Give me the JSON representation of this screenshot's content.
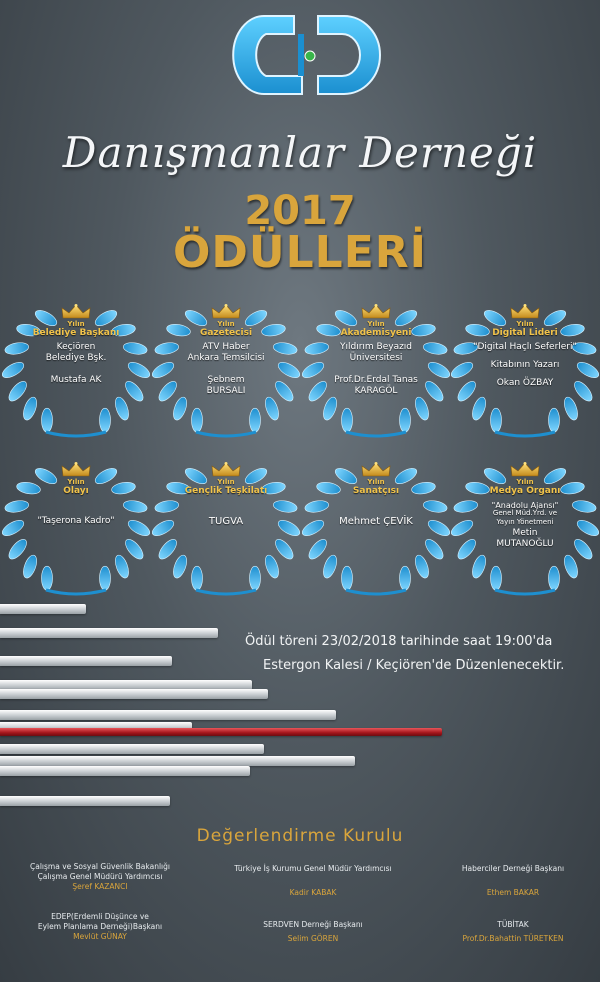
{
  "header": {
    "org_name": "Danışmanlar Derneği",
    "year": "2017",
    "title": "ÖDÜLLERİ"
  },
  "colors": {
    "gold": "#d9a53c",
    "wreath_blue": "#2aa7e0",
    "background": "#4f585f",
    "red_bar": "#a3151b"
  },
  "awards": [
    {
      "yilin": "Yılın",
      "category": "Belediye Başkanı",
      "lines": [
        "Keçiören",
        "Belediye Bşk.",
        "",
        "Mustafa AK"
      ]
    },
    {
      "yilin": "Yılın",
      "category": "Gazetecisi",
      "lines": [
        "ATV Haber",
        "Ankara Temsilcisi",
        "",
        "Şebnem",
        "BURSALI"
      ]
    },
    {
      "yilin": "Yılın",
      "category": "Akademisyeni",
      "lines": [
        "Yıldırım Beyazıd",
        "Üniversitesi",
        "",
        "Prof.Dr.Erdal Tanas",
        "KARAGÖL"
      ]
    },
    {
      "yilin": "Yılın",
      "category": "Digital Lideri",
      "lines": [
        "\"Digital Haçlı Seferleri\"",
        "Kitabının Yazarı",
        "Okan ÖZBAY"
      ]
    },
    {
      "yilin": "Yılın",
      "category": "Olayı",
      "lines": [
        "\"Taşerona Kadro\""
      ]
    },
    {
      "yilin": "Yılın",
      "category": "Gençlik Teşkilatı",
      "lines": [
        "TUGVA"
      ]
    },
    {
      "yilin": "Yılın",
      "category": "Sanatçısı",
      "lines": [
        "Mehmet ÇEVİK"
      ]
    },
    {
      "yilin": "Yılın",
      "category": "Medya Organı",
      "lines": [
        "\"Anadolu Ajansı\"",
        "Genel Müd.Yrd. ve",
        "Yayın Yönetmeni",
        "Metin",
        "MUTANOĞLU"
      ]
    }
  ],
  "ceremony": {
    "line1": "Ödül töreni 23/02/2018 tarihinde saat 19:00'da",
    "line2": "Estergon Kalesi / Keçiören'de Düzenlenecektir."
  },
  "committee": {
    "title": "Değerlendirme Kurulu",
    "members": [
      {
        "role": [
          "Çalışma ve Sosyal Güvenlik Bakanlığı",
          "Çalışma Genel Müdürü Yardımcısı"
        ],
        "name": "Şeref KAZANCI"
      },
      {
        "role": [
          "Türkiye İş Kurumu Genel Müdür Yardımcısı"
        ],
        "name": "Kadir KABAK"
      },
      {
        "role": [
          "Haberciler Derneği Başkanı"
        ],
        "name": "Ethem BAKAR"
      },
      {
        "role": [
          "EDEP(Erdemli Düşünce ve",
          "Eylem Planlama Derneği)Başkanı"
        ],
        "name": "Mevlüt GÜNAY"
      },
      {
        "role": [
          "SERDVEN Derneği Başkanı"
        ],
        "name": "Selim GÖREN"
      },
      {
        "role": [
          "TÜBİTAK"
        ],
        "name": "Prof.Dr.Bahattin TÜRETKEN"
      }
    ]
  }
}
